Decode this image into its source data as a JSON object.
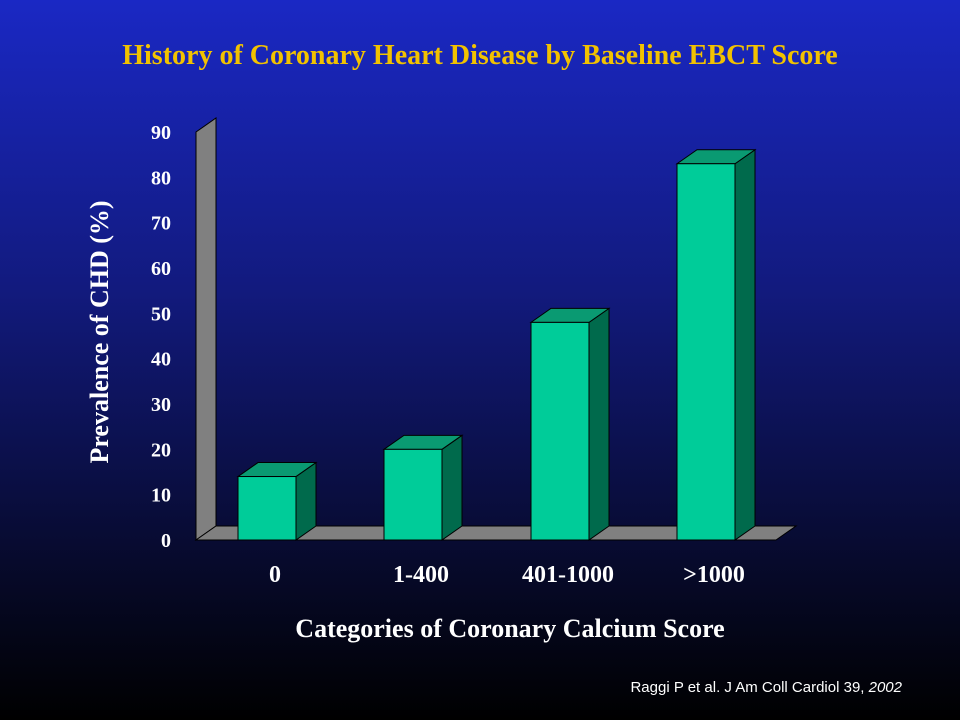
{
  "slide": {
    "title": "History of Coronary Heart Disease by Baseline EBCT Score",
    "citation": {
      "text": "Raggi P et al. J Am Coll Cardiol 39, ",
      "year": "2002"
    }
  },
  "colors": {
    "title": "#f2c200",
    "bar_front": "#00cc99",
    "bar_top": "#0a9a72",
    "bar_side": "#006a4c",
    "wall": "#808080",
    "text": "#ffffff"
  },
  "chart_data": {
    "type": "bar",
    "title": "History of Coronary Heart Disease by Baseline EBCT Score",
    "xlabel": "Categories of Coronary Calcium Score",
    "ylabel": "Prevalence of CHD (%)",
    "categories": [
      "0",
      "1-400",
      "401-1000",
      ">1000"
    ],
    "values": [
      14,
      20,
      48,
      83
    ],
    "ylim": [
      0,
      90
    ],
    "yticks": [
      "0",
      "10",
      "20",
      "30",
      "40",
      "50",
      "60",
      "70",
      "80",
      "90"
    ],
    "grid": false,
    "legend": "none",
    "style": "3d"
  }
}
